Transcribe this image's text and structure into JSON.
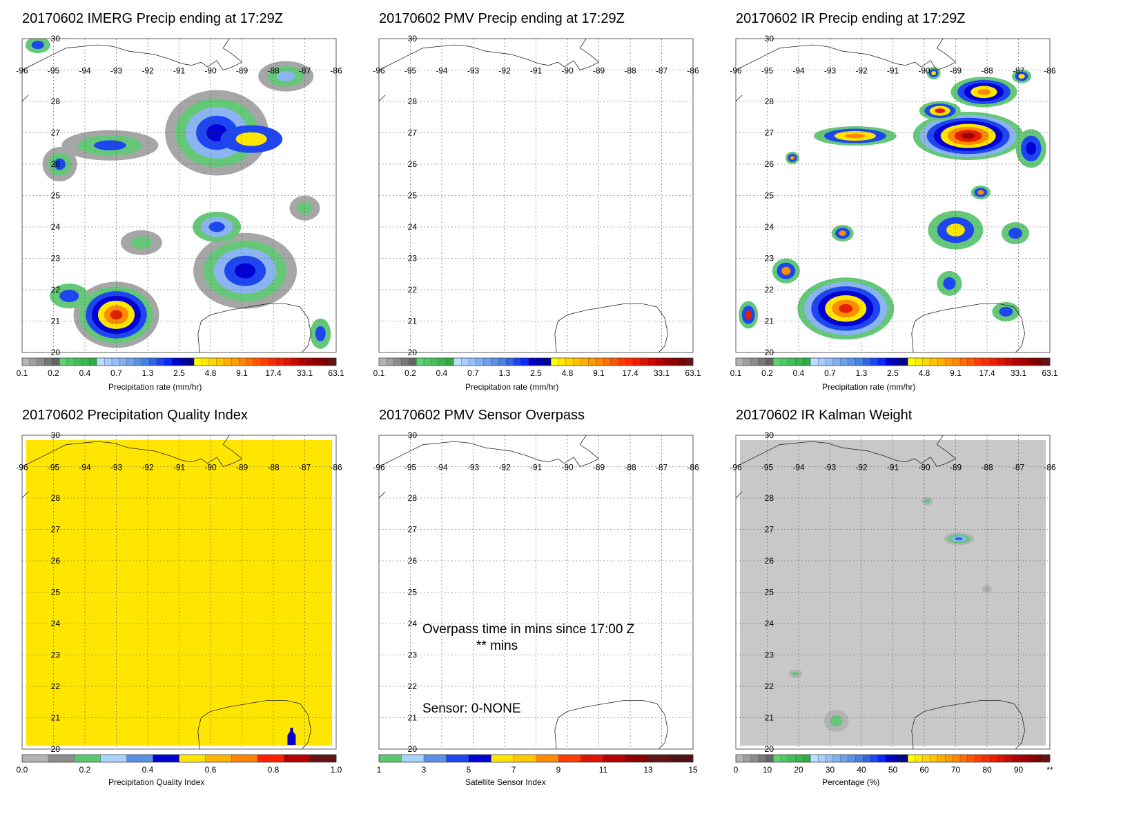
{
  "panels": [
    {
      "title": "20170602 IMERG Precip ending at 17:29Z",
      "map": "precip",
      "colorbar": {
        "label": "Precipitation rate (mm/hr)",
        "ticks": [
          "0.1",
          "0.2",
          "0.4",
          "0.7",
          "1.3",
          "2.5",
          "4.8",
          "9.1",
          "17.4",
          "33.1",
          "63.1"
        ],
        "colors": [
          "#b4b4b4",
          "#a0a0a0",
          "#8c8c8c",
          "#787878",
          "#646464",
          "#5ad26e",
          "#50c864",
          "#46be5a",
          "#3cb450",
          "#32aa46",
          "#bedcff",
          "#aacdff",
          "#96bef5",
          "#82aff0",
          "#6ea0eb",
          "#5a91e6",
          "#4682e1",
          "#3264e6",
          "#1e46f0",
          "#0a28fa",
          "#0000d2",
          "#0000aa",
          "#00008c",
          "#ffff00",
          "#ffeb00",
          "#ffd700",
          "#ffc300",
          "#ffaf00",
          "#ff9b00",
          "#ff8700",
          "#ff6e00",
          "#ff5500",
          "#ff3c00",
          "#ff2800",
          "#f01e00",
          "#dc1400",
          "#c80a00",
          "#b40000",
          "#a00000",
          "#8c0000",
          "#780000",
          "#641414"
        ]
      }
    },
    {
      "title": "20170602 PMV Precip ending at 17:29Z",
      "map": "empty",
      "colorbar": {
        "label": "Precipitation rate (mm/hr)",
        "ticks": [
          "0.1",
          "0.2",
          "0.4",
          "0.7",
          "1.3",
          "2.5",
          "4.8",
          "9.1",
          "17.4",
          "33.1",
          "63.1"
        ],
        "colors": [
          "#b4b4b4",
          "#a0a0a0",
          "#8c8c8c",
          "#787878",
          "#646464",
          "#5ad26e",
          "#50c864",
          "#46be5a",
          "#3cb450",
          "#32aa46",
          "#bedcff",
          "#aacdff",
          "#96bef5",
          "#82aff0",
          "#6ea0eb",
          "#5a91e6",
          "#4682e1",
          "#3264e6",
          "#1e46f0",
          "#0a28fa",
          "#0000d2",
          "#0000aa",
          "#00008c",
          "#ffff00",
          "#ffeb00",
          "#ffd700",
          "#ffc300",
          "#ffaf00",
          "#ff9b00",
          "#ff8700",
          "#ff6e00",
          "#ff5500",
          "#ff3c00",
          "#ff2800",
          "#f01e00",
          "#dc1400",
          "#c80a00",
          "#b40000",
          "#a00000",
          "#8c0000",
          "#780000",
          "#641414"
        ]
      }
    },
    {
      "title": "20170602 IR Precip ending at 17:29Z",
      "map": "ir",
      "colorbar": {
        "label": "Precipitation rate (mm/hr)",
        "ticks": [
          "0.1",
          "0.2",
          "0.4",
          "0.7",
          "1.3",
          "2.5",
          "4.8",
          "9.1",
          "17.4",
          "33.1",
          "63.1"
        ],
        "colors": [
          "#b4b4b4",
          "#a0a0a0",
          "#8c8c8c",
          "#787878",
          "#646464",
          "#5ad26e",
          "#50c864",
          "#46be5a",
          "#3cb450",
          "#32aa46",
          "#bedcff",
          "#aacdff",
          "#96bef5",
          "#82aff0",
          "#6ea0eb",
          "#5a91e6",
          "#4682e1",
          "#3264e6",
          "#1e46f0",
          "#0a28fa",
          "#0000d2",
          "#0000aa",
          "#00008c",
          "#ffff00",
          "#ffeb00",
          "#ffd700",
          "#ffc300",
          "#ffaf00",
          "#ff9b00",
          "#ff8700",
          "#ff6e00",
          "#ff5500",
          "#ff3c00",
          "#ff2800",
          "#f01e00",
          "#dc1400",
          "#c80a00",
          "#b40000",
          "#a00000",
          "#8c0000",
          "#780000",
          "#641414"
        ]
      }
    },
    {
      "title": "20170602 Precipitation Quality Index",
      "map": "quality",
      "colorbar": {
        "label": "Precipitation Quality Index",
        "ticks": [
          "0.0",
          "0.2",
          "0.4",
          "0.6",
          "0.8",
          "1.0"
        ],
        "colors": [
          "#b4b4b4",
          "#8c8c8c",
          "#5ac86e",
          "#aad2ff",
          "#5a91e6",
          "#0000d2",
          "#ffe600",
          "#ffb400",
          "#ff8200",
          "#ff1e00",
          "#b40000",
          "#641414"
        ]
      }
    },
    {
      "title": "20170602 PMV Sensor Overpass",
      "map": "sensor",
      "colorbar": {
        "label": "Satellite Sensor Index",
        "ticks": [
          "1",
          "3",
          "5",
          "7",
          "9",
          "11",
          "13",
          "15"
        ],
        "colors": [
          "#5ac86e",
          "#aad2ff",
          "#5a91e6",
          "#1e46f0",
          "#0000d2",
          "#ffe600",
          "#ffc800",
          "#ff8c00",
          "#ff3c00",
          "#dc1400",
          "#b40000",
          "#8c0000",
          "#641414",
          "#501414"
        ]
      }
    },
    {
      "title": "20170602 IR Kalman Weight",
      "map": "kalman",
      "colorbar": {
        "label": "Percentage (%)",
        "ticks": [
          "0",
          "10",
          "20",
          "30",
          "40",
          "50",
          "60",
          "70",
          "80",
          "90",
          "**"
        ],
        "colors": [
          "#b4b4b4",
          "#a0a0a0",
          "#8c8c8c",
          "#787878",
          "#646464",
          "#5ad26e",
          "#50c864",
          "#46be5a",
          "#3cb450",
          "#32aa46",
          "#bedcff",
          "#aacdff",
          "#96bef5",
          "#82aff0",
          "#6ea0eb",
          "#5a91e6",
          "#4682e1",
          "#3264e6",
          "#1e46f0",
          "#0a28fa",
          "#0000d2",
          "#0000aa",
          "#00008c",
          "#ffff00",
          "#ffeb00",
          "#ffd700",
          "#ffc300",
          "#ffaf00",
          "#ff9b00",
          "#ff8700",
          "#ff6e00",
          "#ff5500",
          "#ff3c00",
          "#ff2800",
          "#f01e00",
          "#dc1400",
          "#c80a00",
          "#b40000",
          "#a00000",
          "#8c0000",
          "#780000",
          "#641414"
        ]
      }
    }
  ],
  "overpass_note": {
    "line1": "Overpass time in mins since 17:00 Z",
    "line2": "** mins",
    "sensor": "Sensor:   0-NONE"
  },
  "chart_data": [
    {
      "type": "heatmap",
      "title": "20170602 IMERG Precip ending at 17:29Z",
      "xlabel": "",
      "ylabel": "",
      "colorbar_label": "Precipitation rate (mm/hr)",
      "xlim": [
        -96,
        -86
      ],
      "ylim": [
        20,
        30
      ],
      "x_ticks": [
        "-96",
        "-95",
        "-94",
        "-93",
        "-92",
        "-91",
        "-90",
        "-89",
        "-88",
        "-87",
        "-86"
      ],
      "y_ticks": [
        "20",
        "21",
        "22",
        "23",
        "24",
        "25",
        "26",
        "27",
        "28",
        "30"
      ],
      "grid": true
    },
    {
      "type": "heatmap",
      "title": "20170602 PMV Precip ending at 17:29Z",
      "xlabel": "",
      "ylabel": "",
      "colorbar_label": "Precipitation rate (mm/hr)",
      "xlim": [
        -96,
        -86
      ],
      "ylim": [
        20,
        30
      ],
      "x_ticks": [
        "-96",
        "-95",
        "-94",
        "-93",
        "-92",
        "-91",
        "-90",
        "-89",
        "-88",
        "-87",
        "-86"
      ],
      "y_ticks": [
        "20",
        "21",
        "22",
        "23",
        "24",
        "25",
        "26",
        "27",
        "28",
        "30"
      ],
      "grid": true
    },
    {
      "type": "heatmap",
      "title": "20170602 IR Precip ending at 17:29Z",
      "xlabel": "",
      "ylabel": "",
      "colorbar_label": "Precipitation rate (mm/hr)",
      "xlim": [
        -96,
        -86
      ],
      "ylim": [
        20,
        30
      ],
      "x_ticks": [
        "-96",
        "-95",
        "-94",
        "-93",
        "-92",
        "-91",
        "-90",
        "-89",
        "-88",
        "-87",
        "-86"
      ],
      "y_ticks": [
        "20",
        "21",
        "22",
        "23",
        "24",
        "25",
        "26",
        "27",
        "28",
        "30"
      ],
      "grid": true
    },
    {
      "type": "heatmap",
      "title": "20170602 Precipitation Quality Index",
      "xlabel": "",
      "ylabel": "",
      "colorbar_label": "Precipitation Quality Index",
      "xlim": [
        -96,
        -86
      ],
      "ylim": [
        20,
        30
      ],
      "x_ticks": [
        "-96",
        "-95",
        "-94",
        "-93",
        "-92",
        "-91",
        "-90",
        "-89",
        "-88",
        "-87",
        "-86"
      ],
      "y_ticks": [
        "20",
        "21",
        "22",
        "23",
        "24",
        "25",
        "26",
        "27",
        "28",
        "30"
      ],
      "grid": true
    },
    {
      "type": "heatmap",
      "title": "20170602 PMV Sensor Overpass",
      "xlabel": "",
      "ylabel": "",
      "colorbar_label": "Satellite Sensor Index",
      "xlim": [
        -96,
        -86
      ],
      "ylim": [
        20,
        30
      ],
      "x_ticks": [
        "-96",
        "-95",
        "-94",
        "-93",
        "-92",
        "-91",
        "-90",
        "-89",
        "-88",
        "-87",
        "-86"
      ],
      "y_ticks": [
        "20",
        "21",
        "22",
        "23",
        "24",
        "25",
        "26",
        "27",
        "28",
        "30"
      ],
      "grid": true
    },
    {
      "type": "heatmap",
      "title": "20170602 IR Kalman Weight",
      "xlabel": "",
      "ylabel": "",
      "colorbar_label": "Percentage (%)",
      "xlim": [
        -96,
        -86
      ],
      "ylim": [
        20,
        30
      ],
      "x_ticks": [
        "-96",
        "-95",
        "-94",
        "-93",
        "-92",
        "-91",
        "-90",
        "-89",
        "-88",
        "-87",
        "-86"
      ],
      "y_ticks": [
        "20",
        "21",
        "22",
        "23",
        "24",
        "25",
        "26",
        "27",
        "28",
        "30"
      ],
      "grid": true
    }
  ]
}
